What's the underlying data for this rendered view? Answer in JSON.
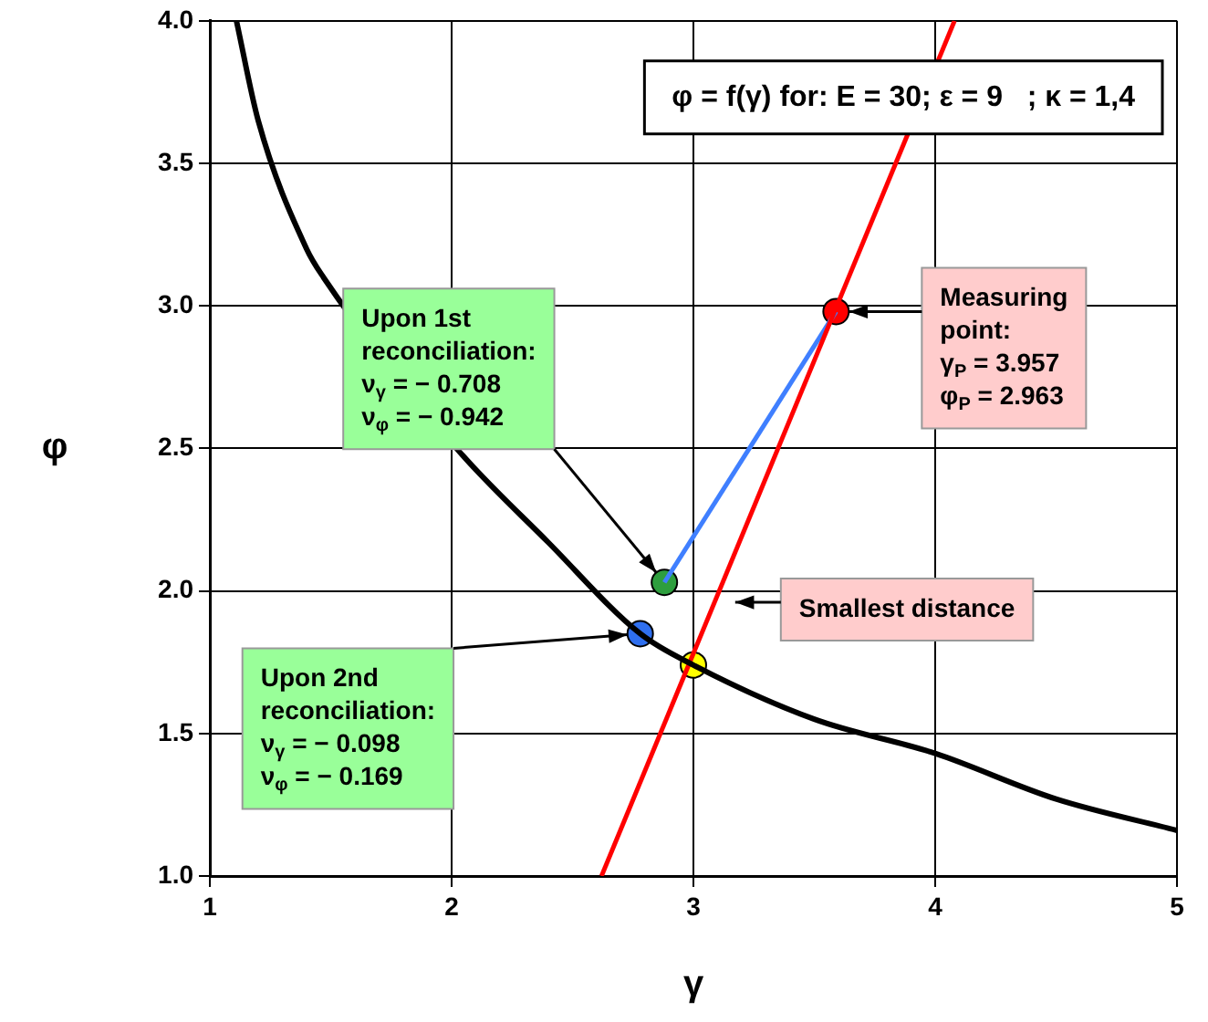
{
  "chart_data": {
    "type": "line",
    "title": "φ = f(γ) for: E = 30; ε = 9   ; κ = 1,4",
    "xlabel": "γ",
    "ylabel": "φ",
    "xlim": [
      1,
      5
    ],
    "xticks": [
      1,
      2,
      3,
      4,
      5
    ],
    "ylim": [
      1,
      4
    ],
    "yticks": [
      {
        "value": 1,
        "label": "1.0"
      },
      {
        "value": 1.5,
        "label": "1.5"
      },
      {
        "value": 2,
        "label": "2.0"
      },
      {
        "value": 2.5,
        "label": "2.5"
      },
      {
        "value": 3,
        "label": "3.0"
      },
      {
        "value": 3.5,
        "label": "3.5"
      },
      {
        "value": 4,
        "label": "4.0"
      }
    ],
    "grid": true,
    "legend": false,
    "marker": "none",
    "series": [
      {
        "type": "line",
        "color": "#000000",
        "x": [
          1.11,
          1.2,
          1.4,
          1.47,
          1.57,
          1.8,
          2.02,
          2.4,
          2.78,
          3.0,
          3.5,
          4.0,
          4.5,
          5.0
        ],
        "values": [
          4.0,
          3.65,
          3.2,
          3.1,
          null,
          null,
          2.5,
          2.17,
          1.85,
          1.74,
          1.55,
          1.43,
          1.27,
          1.16
        ]
      },
      {
        "type": "line",
        "color": "#ff0000",
        "x": [
          2.62,
          4.08
        ],
        "values": [
          1.0,
          4.0
        ]
      },
      {
        "type": "line",
        "color": "#3f7fff",
        "x": [
          2.88,
          3.59
        ],
        "values": [
          2.03,
          2.98
        ]
      },
      {
        "type": "scatter",
        "marker": "circle",
        "color": "#ff0000",
        "x": [
          3.59
        ],
        "values": [
          2.98
        ]
      },
      {
        "type": "scatter",
        "marker": "circle",
        "color": "#2e9e3e",
        "x": [
          2.88
        ],
        "values": [
          2.03
        ]
      },
      {
        "type": "scatter",
        "marker": "circle",
        "color": "#2f6fef",
        "x": [
          2.78
        ],
        "values": [
          1.85
        ]
      },
      {
        "type": "scatter",
        "marker": "circle",
        "color": "#ffff00",
        "x": [
          3.0
        ],
        "values": [
          1.74
        ]
      }
    ],
    "annotations": [
      {
        "text": "Upon 1st\nreconciliation:\nν$_{γ}$ = − 0.708\nν$_{φ}$ = − 0.942",
        "x": 2.88,
        "y": 2.03
      },
      {
        "text": "Upon 2nd\nreconciliation:\nν$_{γ}$ = − 0.098\nν$_{φ}$ = − 0.169",
        "x": 2.78,
        "y": 1.85
      },
      "Measuring\npoint:\nγ$_{P}$ = 3.957\nφ$_{P}$ = 2.963",
      {
        "text": "Smallest distance",
        "x": 3.12,
        "y": 1.96
      }
    ]
  }
}
